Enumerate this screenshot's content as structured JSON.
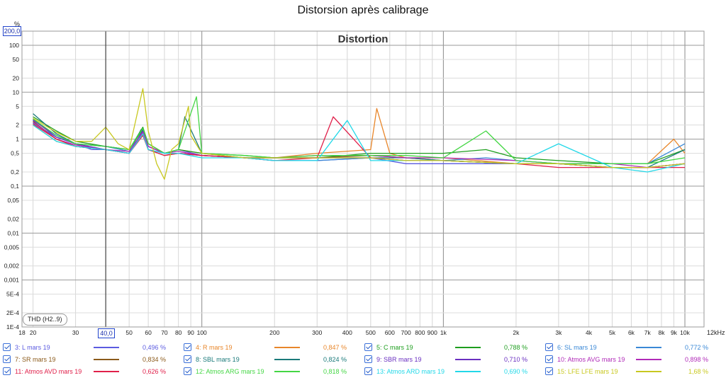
{
  "window": {
    "title": "Distorsion après calibrage"
  },
  "chart_data": {
    "type": "line",
    "title": "Distortion",
    "ylabel": "%",
    "xlabel": "",
    "x_unit_label": "12kHz",
    "x_scale": "log",
    "y_scale": "log",
    "xlim": [
      18,
      12000
    ],
    "ylim": [
      0.0001,
      200
    ],
    "grid": true,
    "legend_placement": "bottom",
    "y_max_readout": "200,0",
    "cursor_readout": "40,0",
    "cursor_x": 40,
    "x_tick_labels": [
      {
        "v": 18,
        "t": "18"
      },
      {
        "v": 20,
        "t": "20"
      },
      {
        "v": 30,
        "t": "30"
      },
      {
        "v": 50,
        "t": "50"
      },
      {
        "v": 60,
        "t": "60"
      },
      {
        "v": 70,
        "t": "70"
      },
      {
        "v": 80,
        "t": "80"
      },
      {
        "v": 90,
        "t": "90"
      },
      {
        "v": 100,
        "t": "100"
      },
      {
        "v": 200,
        "t": "200"
      },
      {
        "v": 300,
        "t": "300"
      },
      {
        "v": 400,
        "t": "400"
      },
      {
        "v": 500,
        "t": "500"
      },
      {
        "v": 600,
        "t": "600"
      },
      {
        "v": 700,
        "t": "700"
      },
      {
        "v": 800,
        "t": "800"
      },
      {
        "v": 900,
        "t": "900"
      },
      {
        "v": 1000,
        "t": "1k"
      },
      {
        "v": 2000,
        "t": "2k"
      },
      {
        "v": 3000,
        "t": "3k"
      },
      {
        "v": 4000,
        "t": "4k"
      },
      {
        "v": 5000,
        "t": "5k"
      },
      {
        "v": 6000,
        "t": "6k"
      },
      {
        "v": 7000,
        "t": "7k"
      },
      {
        "v": 8000,
        "t": "8k"
      },
      {
        "v": 9000,
        "t": "9k"
      },
      {
        "v": 10000,
        "t": "10k"
      }
    ],
    "y_tick_labels": [
      {
        "v": 100,
        "t": "100"
      },
      {
        "v": 50,
        "t": "50"
      },
      {
        "v": 20,
        "t": "20"
      },
      {
        "v": 10,
        "t": "10"
      },
      {
        "v": 5,
        "t": "5"
      },
      {
        "v": 2,
        "t": "2"
      },
      {
        "v": 1,
        "t": "1"
      },
      {
        "v": 0.5,
        "t": "0,5"
      },
      {
        "v": 0.2,
        "t": "0,2"
      },
      {
        "v": 0.1,
        "t": "0,1"
      },
      {
        "v": 0.05,
        "t": "0,05"
      },
      {
        "v": 0.02,
        "t": "0,02"
      },
      {
        "v": 0.01,
        "t": "0,01"
      },
      {
        "v": 0.005,
        "t": "0,005"
      },
      {
        "v": 0.002,
        "t": "0,002"
      },
      {
        "v": 0.001,
        "t": "0,001"
      },
      {
        "v": 0.0005,
        "t": "5E-4"
      },
      {
        "v": 0.0002,
        "t": "2E-4"
      },
      {
        "v": 0.0001,
        "t": "1E-4"
      }
    ],
    "annotation": "THD (H2..9)",
    "series": [
      {
        "name": "3: L mars 19",
        "value": "0,496 %",
        "color": "#5b5be0",
        "x": [
          20,
          25,
          30,
          35,
          40,
          45,
          50,
          56,
          60,
          70,
          80,
          100,
          150,
          200,
          300,
          500,
          700,
          1000,
          1500,
          2000,
          3000,
          5000,
          7000,
          10000
        ],
        "y": [
          2.5,
          1.2,
          0.8,
          0.6,
          0.6,
          0.55,
          0.5,
          1.6,
          0.6,
          0.5,
          0.6,
          0.45,
          0.4,
          0.35,
          0.35,
          0.4,
          0.3,
          0.3,
          0.3,
          0.3,
          0.3,
          0.25,
          0.25,
          0.3
        ]
      },
      {
        "name": "4: R mars 19",
        "value": "0,847 %",
        "color": "#e8862a",
        "x": [
          20,
          25,
          30,
          40,
          50,
          57,
          60,
          70,
          80,
          100,
          150,
          200,
          300,
          500,
          530,
          600,
          700,
          1000,
          2000,
          3000,
          5000,
          7000,
          9000,
          10000
        ],
        "y": [
          2.0,
          0.9,
          0.7,
          0.6,
          0.5,
          1.5,
          0.8,
          0.5,
          0.6,
          0.5,
          0.4,
          0.4,
          0.5,
          0.6,
          4.5,
          0.5,
          0.4,
          0.4,
          0.3,
          0.3,
          0.3,
          0.3,
          1.0,
          0.5
        ]
      },
      {
        "name": "5: C mars 19",
        "value": "0,788 %",
        "color": "#1e9e1e",
        "x": [
          20,
          25,
          30,
          40,
          50,
          57,
          60,
          70,
          80,
          100,
          150,
          200,
          300,
          500,
          700,
          1000,
          1500,
          2000,
          3000,
          5000,
          7000,
          10000
        ],
        "y": [
          3.0,
          1.5,
          0.9,
          0.7,
          0.6,
          1.8,
          0.8,
          0.5,
          0.6,
          0.5,
          0.45,
          0.4,
          0.4,
          0.5,
          0.5,
          0.5,
          0.6,
          0.4,
          0.35,
          0.3,
          0.3,
          0.6
        ]
      },
      {
        "name": "6: SL mars 19",
        "value": "0,772 %",
        "color": "#3a88d6",
        "x": [
          20,
          25,
          30,
          40,
          50,
          57,
          60,
          70,
          80,
          100,
          150,
          200,
          300,
          500,
          700,
          1000,
          1500,
          2000,
          3000,
          5000,
          7000,
          10000
        ],
        "y": [
          2.2,
          1.1,
          0.8,
          0.7,
          0.55,
          1.4,
          0.7,
          0.5,
          0.5,
          0.45,
          0.4,
          0.35,
          0.35,
          0.4,
          0.35,
          0.35,
          0.4,
          0.35,
          0.3,
          0.3,
          0.3,
          0.8
        ]
      },
      {
        "name": "7: SR mars 19",
        "value": "0,834 %",
        "color": "#8b5a1a",
        "x": [
          20,
          25,
          30,
          40,
          50,
          57,
          60,
          70,
          80,
          100,
          150,
          200,
          300,
          500,
          700,
          1000,
          2000,
          3000,
          5000,
          7000,
          10000
        ],
        "y": [
          2.4,
          1.0,
          0.7,
          0.6,
          0.5,
          1.3,
          0.6,
          0.45,
          0.5,
          0.45,
          0.4,
          0.4,
          0.4,
          0.45,
          0.4,
          0.35,
          0.3,
          0.3,
          0.25,
          0.25,
          0.3
        ]
      },
      {
        "name": "8: SBL mars 19",
        "value": "0,824 %",
        "color": "#1a7a7a",
        "x": [
          20,
          25,
          30,
          40,
          50,
          57,
          60,
          70,
          80,
          85,
          100,
          150,
          200,
          300,
          500,
          700,
          1000,
          2000,
          3000,
          5000,
          7000,
          10000
        ],
        "y": [
          3.5,
          1.3,
          0.8,
          0.7,
          0.6,
          1.6,
          0.7,
          0.5,
          0.6,
          3.0,
          0.5,
          0.4,
          0.4,
          0.4,
          0.4,
          0.4,
          0.35,
          0.3,
          0.3,
          0.25,
          0.25,
          0.6
        ]
      },
      {
        "name": "9: SBR mars 19",
        "value": "0,710 %",
        "color": "#6a2fc0",
        "x": [
          20,
          25,
          30,
          40,
          50,
          57,
          60,
          70,
          80,
          100,
          150,
          200,
          300,
          500,
          700,
          1000,
          2000,
          3000,
          5000,
          7000,
          10000
        ],
        "y": [
          2.6,
          1.1,
          0.8,
          0.6,
          0.5,
          1.5,
          0.7,
          0.5,
          0.5,
          0.45,
          0.4,
          0.4,
          0.4,
          0.4,
          0.35,
          0.35,
          0.3,
          0.3,
          0.25,
          0.25,
          0.3
        ]
      },
      {
        "name": "10: Atmos AVG mars 19",
        "value": "0,898 %",
        "color": "#b02ab8",
        "x": [
          20,
          25,
          30,
          40,
          50,
          57,
          60,
          70,
          80,
          100,
          150,
          200,
          300,
          500,
          700,
          1000,
          2000,
          3000,
          5000,
          7000,
          10000
        ],
        "y": [
          2.3,
          1.0,
          0.75,
          0.6,
          0.55,
          1.4,
          0.7,
          0.5,
          0.55,
          0.45,
          0.4,
          0.4,
          0.45,
          0.45,
          0.4,
          0.4,
          0.35,
          0.3,
          0.3,
          0.25,
          0.3
        ]
      },
      {
        "name": "11: Atmos AVD mars 19",
        "value": "0,626 %",
        "color": "#e0204a",
        "x": [
          20,
          25,
          30,
          40,
          50,
          57,
          60,
          70,
          80,
          100,
          150,
          200,
          300,
          350,
          500,
          700,
          1000,
          2000,
          3000,
          5000,
          7000,
          10000
        ],
        "y": [
          2.1,
          1.0,
          0.7,
          0.6,
          0.5,
          1.2,
          0.6,
          0.45,
          0.5,
          0.45,
          0.4,
          0.35,
          0.4,
          3.0,
          0.4,
          0.35,
          0.35,
          0.3,
          0.25,
          0.25,
          0.25,
          0.25
        ]
      },
      {
        "name": "12: Atmos ARG mars 19",
        "value": "0,818 %",
        "color": "#44d644",
        "x": [
          20,
          25,
          30,
          40,
          50,
          57,
          60,
          70,
          80,
          95,
          100,
          150,
          200,
          300,
          500,
          700,
          1000,
          1500,
          2000,
          3000,
          5000,
          7000,
          10000
        ],
        "y": [
          2.7,
          1.2,
          0.8,
          0.7,
          0.6,
          1.7,
          0.8,
          0.5,
          0.6,
          8.0,
          0.5,
          0.45,
          0.4,
          0.45,
          0.45,
          0.45,
          0.4,
          1.5,
          0.35,
          0.3,
          0.3,
          0.3,
          0.4
        ]
      },
      {
        "name": "13: Atmos ARD mars 19",
        "value": "0,690 %",
        "color": "#22d8e8",
        "x": [
          20,
          25,
          30,
          40,
          50,
          57,
          60,
          70,
          80,
          100,
          150,
          200,
          300,
          400,
          500,
          700,
          1000,
          2000,
          3000,
          5000,
          7000,
          10000
        ],
        "y": [
          2.0,
          0.9,
          0.7,
          0.6,
          0.5,
          1.3,
          0.6,
          0.5,
          0.5,
          0.4,
          0.4,
          0.35,
          0.35,
          2.5,
          0.35,
          0.35,
          0.35,
          0.3,
          0.8,
          0.25,
          0.2,
          0.3
        ]
      },
      {
        "name": "15: LFE LFE mars 19",
        "value": "1,68 %",
        "color": "#c8c820",
        "x": [
          20,
          25,
          30,
          35,
          40,
          45,
          50,
          57,
          60,
          65,
          70,
          75,
          80,
          88,
          90,
          100,
          150,
          200,
          300,
          500,
          700,
          1000,
          2000,
          3000,
          5000,
          7000,
          10000
        ],
        "y": [
          2.8,
          1.4,
          0.9,
          0.9,
          1.8,
          0.8,
          0.6,
          12,
          1.5,
          0.3,
          0.14,
          0.6,
          0.8,
          5.0,
          1.2,
          0.5,
          0.4,
          0.4,
          0.4,
          0.4,
          0.35,
          0.35,
          0.3,
          0.3,
          0.25,
          0.25,
          0.3
        ]
      }
    ]
  }
}
